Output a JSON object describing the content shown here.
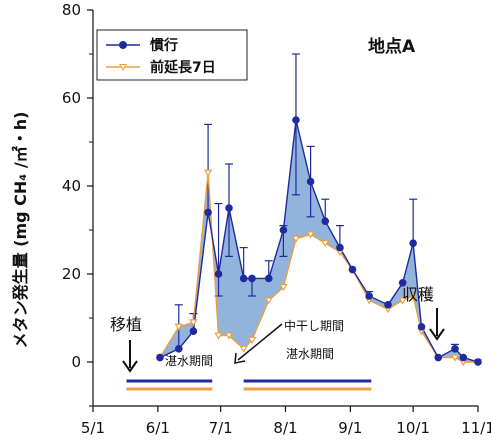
{
  "chart_data": {
    "type": "line",
    "title": "地点A",
    "ylabel": "メタン発生量 (mg CH₄ /㎡・h)",
    "xlabel": "",
    "ylim": [
      -10,
      80
    ],
    "yticks": [
      0,
      20,
      40,
      60,
      80
    ],
    "xticks": [
      "5/1",
      "6/1",
      "7/1",
      "8/1",
      "9/1",
      "10/1",
      "11/1"
    ],
    "series": [
      {
        "name": "慣行",
        "color": "#1f2a9e",
        "marker": "circle",
        "points": [
          {
            "x": "6/2",
            "y": 1
          },
          {
            "x": "6/11",
            "y": 3
          },
          {
            "x": "6/18",
            "y": 7
          },
          {
            "x": "6/25",
            "y": 34
          },
          {
            "x": "6/30",
            "y": 20
          },
          {
            "x": "7/5",
            "y": 35
          },
          {
            "x": "7/12",
            "y": 19
          },
          {
            "x": "7/16",
            "y": 19
          },
          {
            "x": "7/24",
            "y": 19
          },
          {
            "x": "7/31",
            "y": 30
          },
          {
            "x": "8/6",
            "y": 55
          },
          {
            "x": "8/13",
            "y": 41
          },
          {
            "x": "8/20",
            "y": 32
          },
          {
            "x": "8/27",
            "y": 26
          },
          {
            "x": "9/2",
            "y": 21
          },
          {
            "x": "9/10",
            "y": 15
          },
          {
            "x": "9/19",
            "y": 13
          },
          {
            "x": "9/26",
            "y": 18
          },
          {
            "x": "10/1",
            "y": 27
          },
          {
            "x": "10/5",
            "y": 8
          },
          {
            "x": "10/13",
            "y": 1
          },
          {
            "x": "10/21",
            "y": 3
          },
          {
            "x": "10/25",
            "y": 1
          },
          {
            "x": "11/1",
            "y": 0
          }
        ]
      },
      {
        "name": "前延長7日",
        "color": "#e8a042",
        "marker": "triangle-down",
        "points": [
          {
            "x": "6/2",
            "y": 1
          },
          {
            "x": "6/11",
            "y": 8
          },
          {
            "x": "6/18",
            "y": 9
          },
          {
            "x": "6/25",
            "y": 43
          },
          {
            "x": "6/30",
            "y": 6
          },
          {
            "x": "7/5",
            "y": 6
          },
          {
            "x": "7/12",
            "y": 3
          },
          {
            "x": "7/16",
            "y": 5
          },
          {
            "x": "7/24",
            "y": 14
          },
          {
            "x": "7/31",
            "y": 17
          },
          {
            "x": "8/6",
            "y": 28
          },
          {
            "x": "8/13",
            "y": 29
          },
          {
            "x": "8/20",
            "y": 27
          },
          {
            "x": "8/27",
            "y": 25
          },
          {
            "x": "9/2",
            "y": 21
          },
          {
            "x": "9/10",
            "y": 14
          },
          {
            "x": "9/19",
            "y": 12
          },
          {
            "x": "9/26",
            "y": 14
          },
          {
            "x": "10/1",
            "y": 15
          },
          {
            "x": "10/5",
            "y": 7
          },
          {
            "x": "10/13",
            "y": 1
          },
          {
            "x": "10/21",
            "y": 1
          },
          {
            "x": "10/25",
            "y": 0
          },
          {
            "x": "11/1",
            "y": 0
          }
        ]
      }
    ],
    "error_bars_upper": [
      {
        "x": "6/11",
        "y": 13
      },
      {
        "x": "6/18",
        "y": 11
      },
      {
        "x": "6/25",
        "y": 54
      },
      {
        "x": "6/30",
        "y": 36
      },
      {
        "x": "7/5",
        "y": 45
      },
      {
        "x": "7/12",
        "y": 26
      },
      {
        "x": "7/24",
        "y": 23
      },
      {
        "x": "7/31",
        "y": 31
      },
      {
        "x": "8/6",
        "y": 70
      },
      {
        "x": "8/13",
        "y": 49
      },
      {
        "x": "8/20",
        "y": 37
      },
      {
        "x": "8/27",
        "y": 31
      },
      {
        "x": "9/10",
        "y": 16
      },
      {
        "x": "10/1",
        "y": 37
      },
      {
        "x": "10/21",
        "y": 4
      }
    ],
    "error_bars_lower": [
      {
        "x": "6/30",
        "y": 15
      },
      {
        "x": "7/5",
        "y": 24
      },
      {
        "x": "7/16",
        "y": 15
      },
      {
        "x": "7/31",
        "y": 24
      },
      {
        "x": "8/6",
        "y": 38
      },
      {
        "x": "8/13",
        "y": 33
      }
    ],
    "fill_between": {
      "color": "#7fa6d6"
    },
    "annotations": {
      "transplant": "移植",
      "harvest": "収穫",
      "midseason_drain": "中干し期間",
      "flood_period_1": "湛水期間",
      "flood_period_2": "湛水期間"
    },
    "flood_periods": [
      {
        "series": "慣行",
        "color": "#1f2a9e",
        "start": "5/17",
        "end": "6/27"
      },
      {
        "series": "慣行",
        "color": "#1f2a9e",
        "start": "7/12",
        "end": "9/11"
      },
      {
        "series": "前延長7日",
        "color": "#e8a042",
        "start": "5/17",
        "end": "6/27"
      },
      {
        "series": "前延長7日",
        "color": "#e8a042",
        "start": "7/12",
        "end": "9/11"
      }
    ],
    "transplant_date": "5/22",
    "harvest_date": "10/20",
    "legend_position": "top-left",
    "grid": false
  }
}
